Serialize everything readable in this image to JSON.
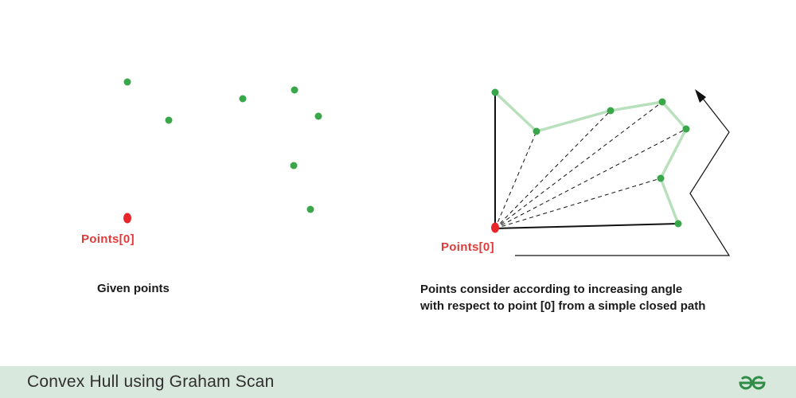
{
  "left_panel": {
    "origin_label": "Points[0]",
    "caption": "Given points"
  },
  "right_panel": {
    "origin_label": "Points[0]",
    "caption_line1": "Points consider according to increasing angle",
    "caption_line2": "with respect to point [0] from a simple closed path"
  },
  "footer": {
    "title": "Convex Hull using Graham Scan",
    "logo_icon": "geeksforgeeks-logo-icon"
  },
  "colors": {
    "point": "#3aa64a",
    "origin": "#e8262a",
    "path": "#b9e0bd",
    "line": "#111111",
    "footer_bg": "#d9e8dd"
  }
}
